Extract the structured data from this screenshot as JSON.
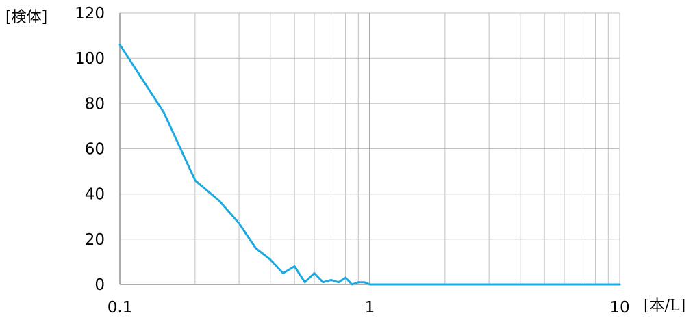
{
  "chart_data": {
    "type": "line",
    "title": "",
    "xlabel": "[本/L]",
    "ylabel": "[検体]",
    "x_scale": "log",
    "xlim": [
      0.1,
      10
    ],
    "ylim": [
      0,
      120
    ],
    "x_ticks": [
      "0.1",
      "1",
      "10"
    ],
    "y_ticks": [
      "0",
      "20",
      "40",
      "60",
      "80",
      "100",
      "120"
    ],
    "grid": true,
    "legend": "none",
    "series": [
      {
        "color": "#1aa9e0",
        "x": [
          0.1,
          0.15,
          0.2,
          0.25,
          0.3,
          0.35,
          0.4,
          0.45,
          0.5,
          0.55,
          0.6,
          0.65,
          0.7,
          0.75,
          0.8,
          0.85,
          0.9,
          0.95,
          1.0,
          1.05,
          1.5,
          2,
          3,
          5,
          10
        ],
        "y": [
          106,
          76,
          46,
          37,
          27,
          16,
          11,
          5,
          8,
          1,
          5,
          1,
          2,
          1,
          3,
          0,
          1,
          1,
          0,
          0,
          0,
          0,
          0,
          0,
          0
        ]
      }
    ]
  }
}
